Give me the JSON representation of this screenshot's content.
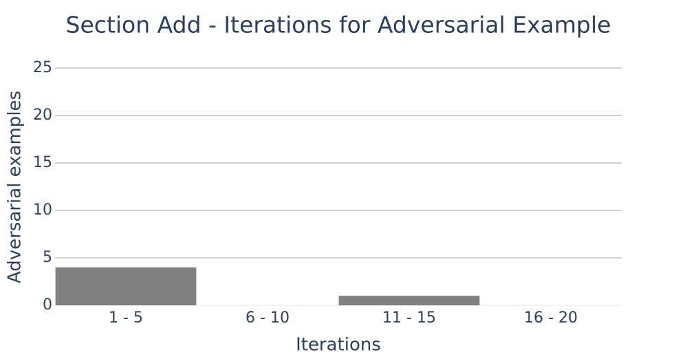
{
  "chart_data": {
    "type": "bar",
    "title": "Section Add - Iterations for Adversarial Example",
    "x_label": "Iterations",
    "y_label": "Adversarial examples",
    "categories": [
      "1 - 5",
      "6 - 10",
      "11 - 15",
      "16 - 20"
    ],
    "values": [
      4,
      0,
      1,
      0
    ],
    "color": "#808080",
    "ylim": [
      0,
      25
    ],
    "yticks": [
      0,
      5,
      10,
      15,
      20,
      25
    ],
    "grid": true
  }
}
